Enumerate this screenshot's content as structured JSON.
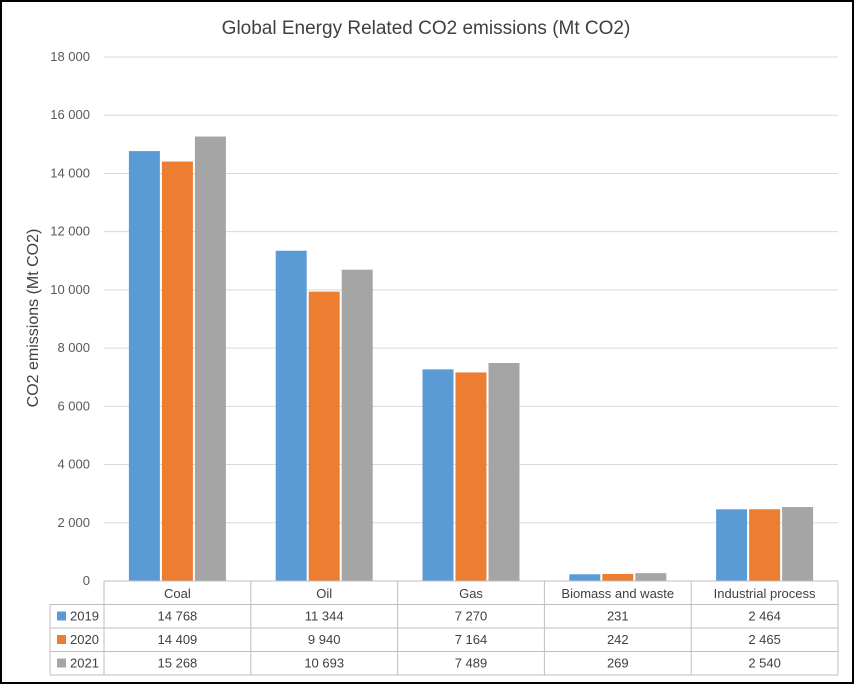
{
  "chart_data": {
    "type": "bar",
    "title": "Global Energy Related CO2 emissions (Mt CO2)",
    "ylabel": "CO2 emissions (Mt CO2)",
    "xlabel": "",
    "ylim": [
      0,
      18000
    ],
    "yticks": [
      0,
      2000,
      4000,
      6000,
      8000,
      10000,
      12000,
      14000,
      16000,
      18000
    ],
    "ytick_labels": [
      "0",
      "2 000",
      "4 000",
      "6 000",
      "8 000",
      "10 000",
      "12 000",
      "14 000",
      "16 000",
      "18 000"
    ],
    "grid": true,
    "legend": "data-table",
    "categories": [
      "Coal",
      "Oil",
      "Gas",
      "Biomass and waste",
      "Industrial process"
    ],
    "series": [
      {
        "name": "2019",
        "color": "#5B9BD5",
        "values": [
          14768,
          11344,
          7270,
          231,
          2464
        ],
        "labels": [
          "14 768",
          "11 344",
          "7 270",
          "231",
          "2 464"
        ]
      },
      {
        "name": "2020",
        "color": "#ED7D31",
        "values": [
          14409,
          9940,
          7164,
          242,
          2465
        ],
        "labels": [
          "14 409",
          "9 940",
          "7 164",
          "242",
          "2 465"
        ]
      },
      {
        "name": "2021",
        "color": "#A5A5A5",
        "values": [
          15268,
          10693,
          7489,
          269,
          2540
        ],
        "labels": [
          "15 268",
          "10 693",
          "7 489",
          "269",
          "2 540"
        ]
      }
    ]
  }
}
